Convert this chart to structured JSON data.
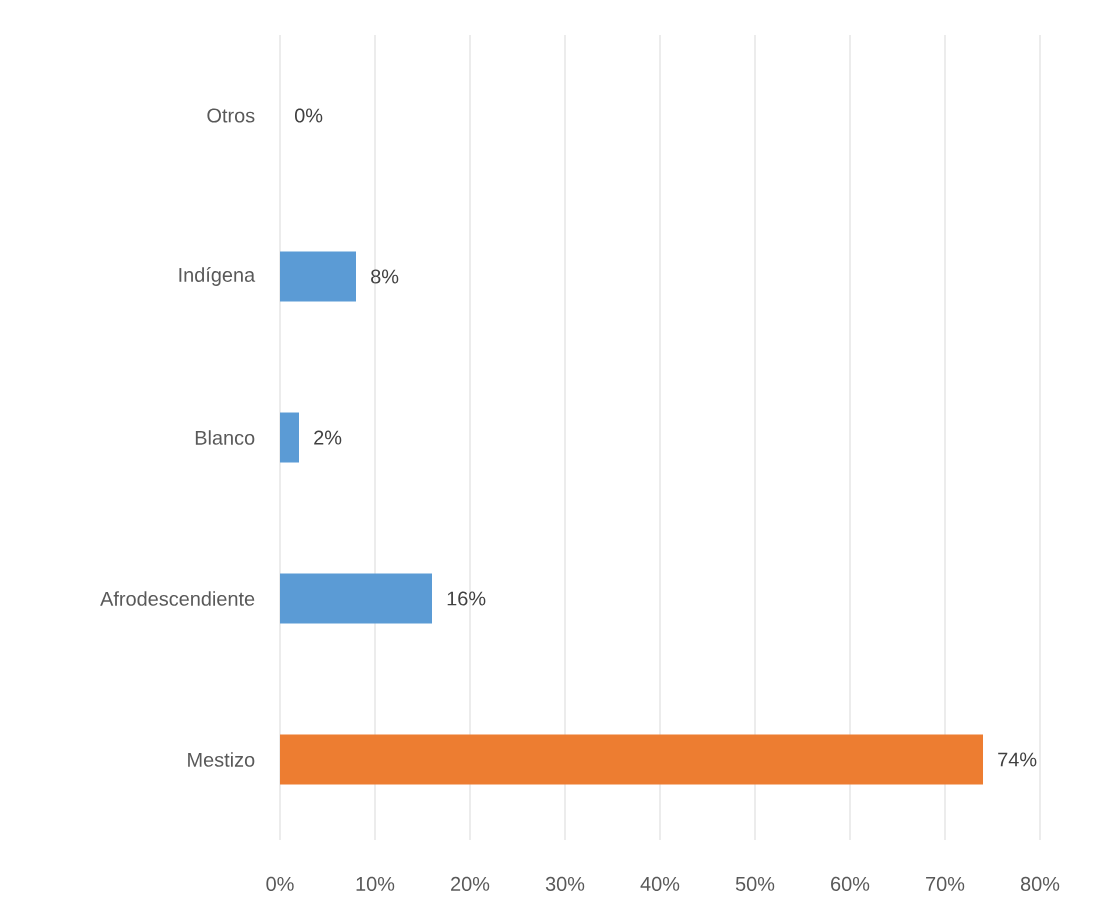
{
  "chart_data": {
    "type": "bar",
    "orientation": "horizontal",
    "categories": [
      "Otros",
      "Indígena",
      "Blanco",
      "Afrodescendiente",
      "Mestizo"
    ],
    "values": [
      0,
      8,
      2,
      16,
      74
    ],
    "colors": [
      "#5b9bd5",
      "#5b9bd5",
      "#5b9bd5",
      "#5b9bd5",
      "#ed7d31"
    ],
    "value_labels": [
      "0%",
      "8%",
      "2%",
      "16%",
      "74%"
    ],
    "xlim": [
      0,
      80
    ],
    "xticks": [
      {
        "value": 0,
        "label": "0%"
      },
      {
        "value": 10,
        "label": "10%"
      },
      {
        "value": 20,
        "label": "20%"
      },
      {
        "value": 30,
        "label": "30%"
      },
      {
        "value": 40,
        "label": "40%"
      },
      {
        "value": 50,
        "label": "50%"
      },
      {
        "value": 60,
        "label": "60%"
      },
      {
        "value": 70,
        "label": "70%"
      },
      {
        "value": 80,
        "label": "80%"
      }
    ],
    "grid": "x"
  }
}
